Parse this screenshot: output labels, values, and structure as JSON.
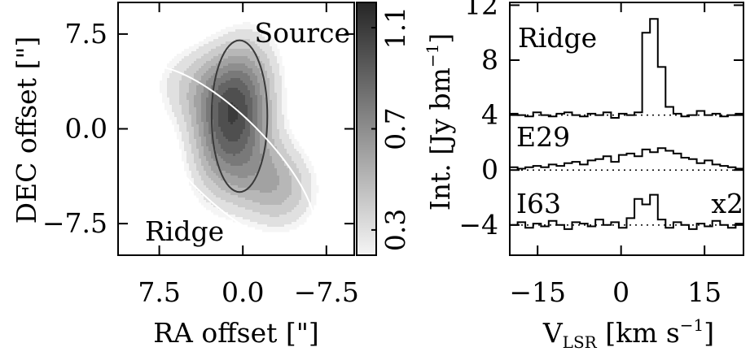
{
  "chart_data": [
    {
      "type": "heatmap",
      "title": "",
      "xlabel": "RA offset [\"]",
      "ylabel": "DEC offset [\"]",
      "xlim": [
        11.2,
        -10.0
      ],
      "ylim": [
        -10.0,
        10.0
      ],
      "x_ticks": [
        7.5,
        0.0,
        -7.5
      ],
      "x_tick_labels": [
        "7.5",
        "0.0",
        "−7.5"
      ],
      "y_ticks": [
        7.5,
        0.0,
        -7.5
      ],
      "y_tick_labels": [
        "7.5",
        "0.0",
        "−7.5"
      ],
      "annotations": [
        "Source",
        "Ridge"
      ],
      "colorbar": {
        "range": [
          0.2,
          1.2
        ],
        "ticks": [
          0.3,
          0.7,
          1.1
        ],
        "tick_labels": [
          "0.3",
          "0.7",
          "1.1"
        ]
      },
      "ellipses": [
        {
          "name": "Source",
          "color": "#3a3a3a",
          "center": [
            0.3,
            1.0
          ],
          "semi_axes": [
            2.5,
            6.0
          ],
          "angle_deg": 0
        },
        {
          "name": "Ridge",
          "color": "#ffffff",
          "center": [
            1.6,
            -2.2
          ],
          "semi_axes": [
            3.8,
            9.5
          ],
          "angle_deg": 45
        }
      ],
      "emission_components": [
        {
          "center": [
            0.8,
            1.0
          ],
          "sigma": [
            2.4,
            4.2
          ],
          "angle_deg": 15,
          "peak": 0.95
        },
        {
          "center": [
            -3.0,
            -4.5
          ],
          "sigma": [
            2.8,
            2.6
          ],
          "angle_deg": 40,
          "peak": 0.5
        },
        {
          "center": [
            4.5,
            3.5
          ],
          "sigma": [
            3.0,
            2.5
          ],
          "angle_deg": 0,
          "peak": 0.3
        }
      ]
    },
    {
      "type": "line",
      "title": "",
      "xlabel": "V",
      "xlabel_sub": "LSR",
      "xlabel_unit": "[km s",
      "xlabel_sup": "−1",
      "xlabel_close": "]",
      "ylabel": "Int. [Jy bm",
      "ylabel_sup": "−1",
      "ylabel_close": "]",
      "xlim": [
        -20,
        22
      ],
      "ylim": [
        -6.2,
        12.2
      ],
      "x_ticks": [
        -15,
        0,
        15
      ],
      "x_tick_labels": [
        "−15",
        "0",
        "15"
      ],
      "y_ticks": [
        -4,
        0,
        4,
        8,
        12
      ],
      "y_tick_labels": [
        "−4",
        "0",
        "4",
        "8",
        "12"
      ],
      "x": [
        -20,
        -18.6,
        -17.2,
        -15.8,
        -14.4,
        -13,
        -11.6,
        -10.2,
        -8.8,
        -7.4,
        -6,
        -4.6,
        -3.2,
        -1.8,
        -0.4,
        1,
        2.4,
        3.8,
        5.2,
        6.6,
        8,
        9.4,
        10.8,
        12.2,
        13.6,
        15,
        16.4,
        17.8,
        19.2,
        20.6
      ],
      "series": [
        {
          "name": "Ridge",
          "baseline": 4,
          "values": [
            4.1,
            4.0,
            3.9,
            4.2,
            4.0,
            3.9,
            4.1,
            4.2,
            4.0,
            3.9,
            4.1,
            4.0,
            4.2,
            3.8,
            4.1,
            4.0,
            4.2,
            10.0,
            11.0,
            7.5,
            4.6,
            4.1,
            3.9,
            4.0,
            4.3,
            4.0,
            4.1,
            3.9,
            4.0,
            4.1
          ]
        },
        {
          "name": "E29",
          "baseline": 0,
          "values": [
            0.2,
            0.1,
            0.2,
            0.3,
            0.2,
            0.4,
            0.3,
            0.5,
            0.6,
            0.4,
            0.7,
            0.8,
            1.0,
            0.6,
            1.1,
            1.2,
            1.0,
            1.5,
            1.3,
            1.6,
            1.4,
            1.2,
            0.9,
            0.8,
            0.5,
            0.7,
            0.4,
            0.3,
            0.2,
            0.1
          ]
        },
        {
          "name": "I63",
          "baseline": -4,
          "values": [
            -4.0,
            -3.8,
            -4.2,
            -3.9,
            -4.1,
            -3.7,
            -4.0,
            -4.3,
            -3.8,
            -3.9,
            -4.1,
            -3.6,
            -4.0,
            -3.8,
            -4.2,
            -3.5,
            -2.1,
            -2.5,
            -1.8,
            -3.6,
            -4.2,
            -3.8,
            -4.0,
            -4.3,
            -3.9,
            -4.1,
            -3.7,
            -4.0,
            -4.2,
            -3.9
          ]
        }
      ],
      "annotations": [
        "x2"
      ]
    }
  ]
}
